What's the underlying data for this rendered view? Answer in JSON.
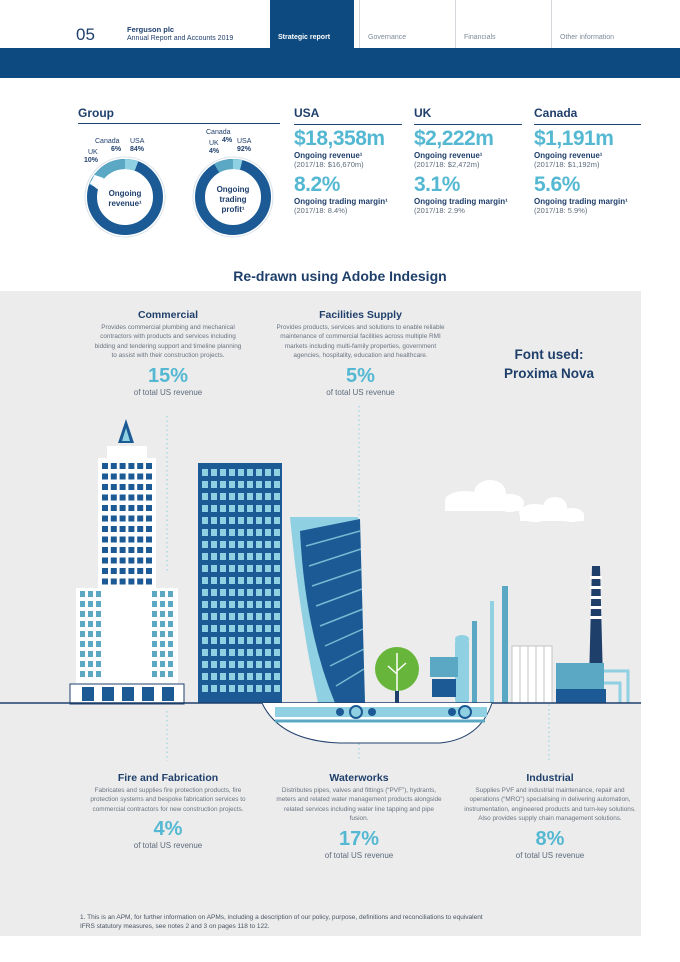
{
  "header": {
    "page_number": "05",
    "company": "Ferguson plc",
    "report": "Annual Report and Accounts 2019",
    "tabs": [
      {
        "label": "Strategic report",
        "active": true
      },
      {
        "label": "Governance",
        "active": false
      },
      {
        "label": "Financials",
        "active": false
      },
      {
        "label": "Other information",
        "active": false
      }
    ]
  },
  "group": {
    "title": "Group",
    "donuts": [
      {
        "center": [
          "Ongoing",
          "revenue¹"
        ],
        "segments": [
          {
            "name": "USA",
            "pct": "84%",
            "value": 84
          },
          {
            "name": "UK",
            "pct": "10%",
            "value": 10
          },
          {
            "name": "Canada",
            "pct": "6%",
            "value": 6
          }
        ]
      },
      {
        "center": [
          "Ongoing",
          "trading",
          "profit¹"
        ],
        "segments": [
          {
            "name": "USA",
            "pct": "92%",
            "value": 92
          },
          {
            "name": "UK",
            "pct": "4%",
            "value": 4
          },
          {
            "name": "Canada",
            "pct": "4%",
            "value": 4
          }
        ]
      }
    ]
  },
  "regions": [
    {
      "name": "USA",
      "revenue": "$18,358m",
      "revenue_label": "Ongoing revenue¹",
      "revenue_prior": "(2017/18: $16,670m)",
      "margin": "8.2%",
      "margin_label": "Ongoing trading margin¹",
      "margin_prior": "(2017/18: 8.4%)"
    },
    {
      "name": "UK",
      "revenue": "$2,222m",
      "revenue_label": "Ongoing revenue¹",
      "revenue_prior": "(2017/18: $2,472m)",
      "margin": "3.1%",
      "margin_label": "Ongoing trading margin¹",
      "margin_prior": "(2017/18: 2.9%"
    },
    {
      "name": "Canada",
      "revenue": "$1,191m",
      "revenue_label": "Ongoing revenue¹",
      "revenue_prior": "(2017/18: $1,192m)",
      "margin": "5.6%",
      "margin_label": "Ongoing trading margin¹",
      "margin_prior": "(2017/18: 5.9%)"
    }
  ],
  "redrawn_note": "Re-drawn using Adobe Indesign",
  "font_note": [
    "Font used:",
    "Proxima Nova"
  ],
  "segments": {
    "commercial": {
      "title": "Commercial",
      "desc": "Provides commercial plumbing and mechanical contractors with products and services including bidding and tendering support and timeline planning to assist with their construction projects.",
      "pct": "15%",
      "rev": "of total US revenue"
    },
    "facilities": {
      "title": "Facilities Supply",
      "desc": "Provides products, services and solutions to enable reliable maintenance of commercial facilities across multiple RMI markets including multi-family properties, government agencies, hospitality, education and healthcare.",
      "pct": "5%",
      "rev": "of total US revenue"
    },
    "fire": {
      "title": "Fire and Fabrication",
      "desc": "Fabricates and supplies fire protection products, fire protection systems and bespoke fabrication services to commercial contractors for new construction projects.",
      "pct": "4%",
      "rev": "of total US revenue"
    },
    "waterworks": {
      "title": "Waterworks",
      "desc": "Distributes pipes, valves and fittings (“PVF”), hydrants, meters and related water management products alongside related services including water line tapping and pipe fusion.",
      "pct": "17%",
      "rev": "of total US revenue"
    },
    "industrial": {
      "title": "Industrial",
      "desc": "Supplies PVF and industrial maintenance, repair and operations (“MRO”) specialising in delivering automation, instrumentation, engineered products and turn-key solutions. Also provides supply chain management solutions.",
      "pct": "8%",
      "rev": "of total US revenue"
    }
  },
  "footnote": "1.   This is an APM, for further information on APMs, including a description of our policy, purpose, definitions and reconciliations to equivalent IFRS statutory measures, see notes 2 and 3 on pages 118 to 122.",
  "colors": {
    "navy": "#0d4a80",
    "text": "#1f3f6b",
    "accent": "#55b8d2",
    "panel": "#ececec"
  }
}
